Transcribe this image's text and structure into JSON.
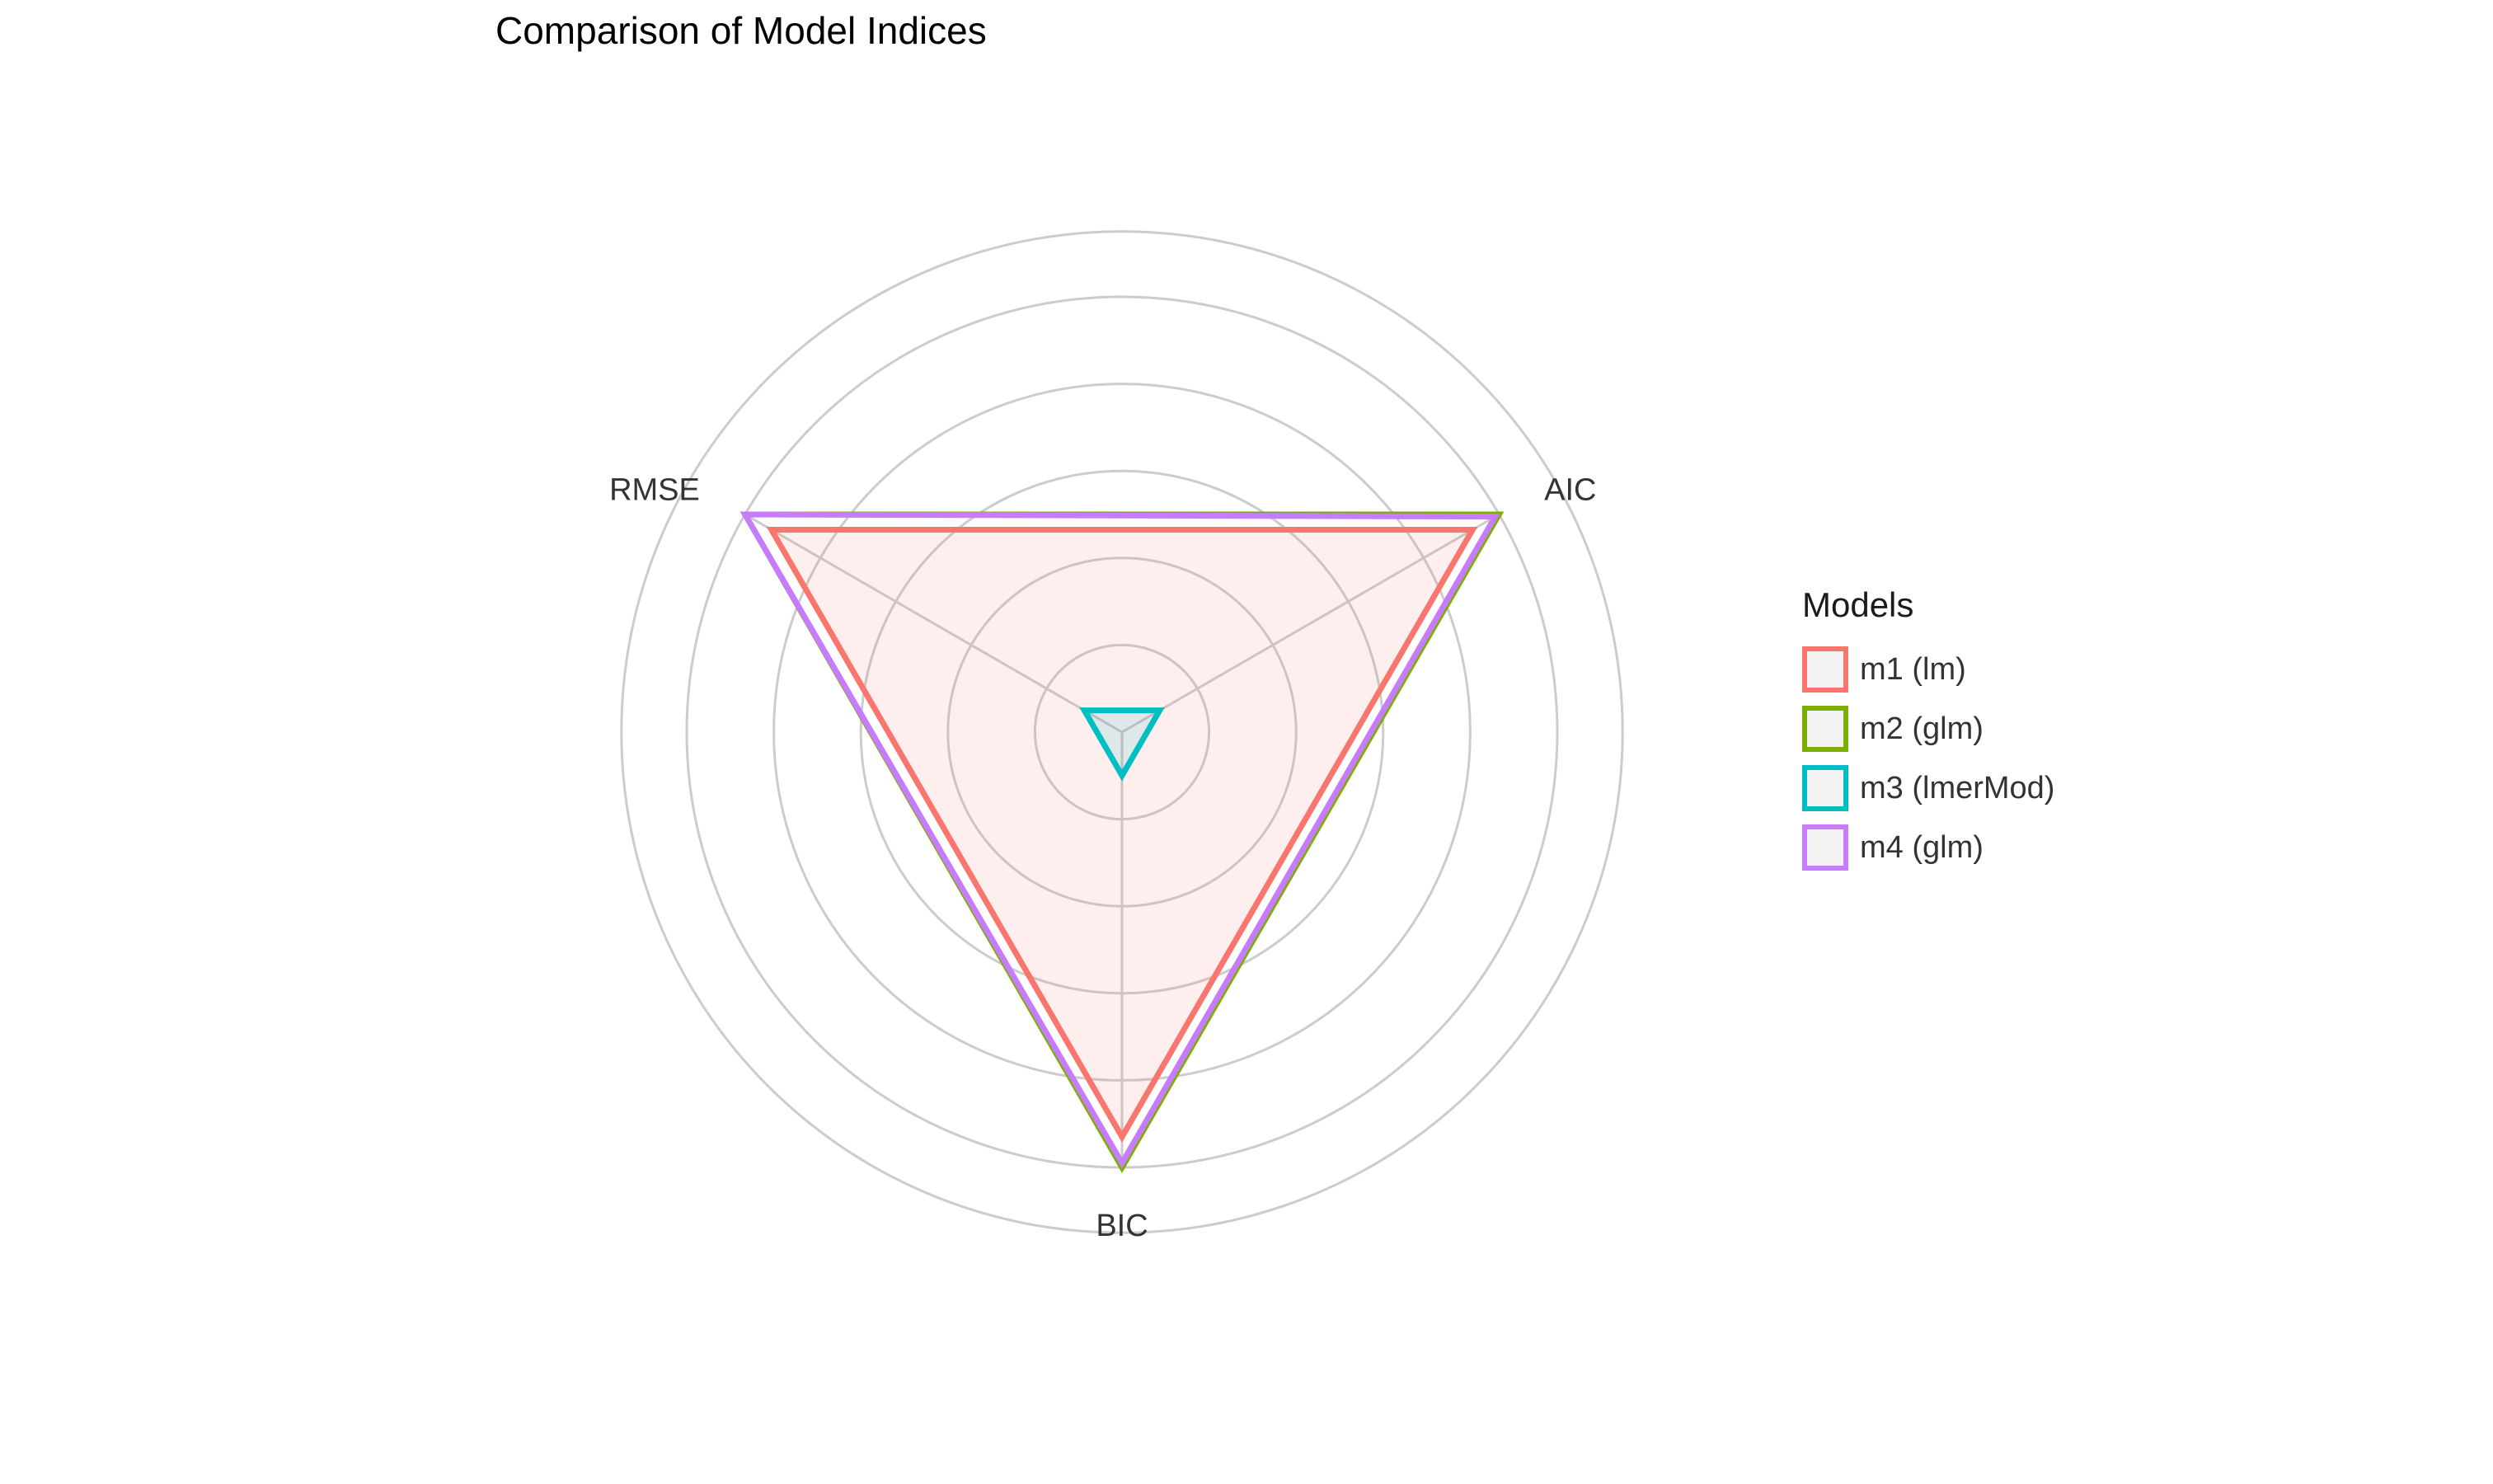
{
  "chart_data": {
    "type": "radar",
    "title": "Comparison of Model Indices",
    "axes": [
      "AIC",
      "BIC",
      "RMSE"
    ],
    "rlim": [
      0,
      1.15
    ],
    "grid": true,
    "grid_rings": [
      0.2,
      0.4,
      0.6,
      0.8,
      1.0,
      1.15
    ],
    "legend": {
      "title": "Models",
      "position": "right"
    },
    "series": [
      {
        "name": "m1 (lm)",
        "color": "#f8766d",
        "values": {
          "AIC": 0.93,
          "BIC": 0.93,
          "RMSE": 0.93
        },
        "fill": true
      },
      {
        "name": "m2 (glm)",
        "color": "#7cae00",
        "values": {
          "AIC": 1.0,
          "BIC": 1.0,
          "RMSE": 1.0
        },
        "fill": false
      },
      {
        "name": "m3 (lmerMod)",
        "color": "#00bfc4",
        "values": {
          "AIC": 0.1,
          "BIC": 0.1,
          "RMSE": 0.1
        },
        "fill": true
      },
      {
        "name": "m4 (glm)",
        "color": "#c77cff",
        "values": {
          "AIC": 0.99,
          "BIC": 0.99,
          "RMSE": 1.0
        },
        "fill": false
      }
    ]
  }
}
